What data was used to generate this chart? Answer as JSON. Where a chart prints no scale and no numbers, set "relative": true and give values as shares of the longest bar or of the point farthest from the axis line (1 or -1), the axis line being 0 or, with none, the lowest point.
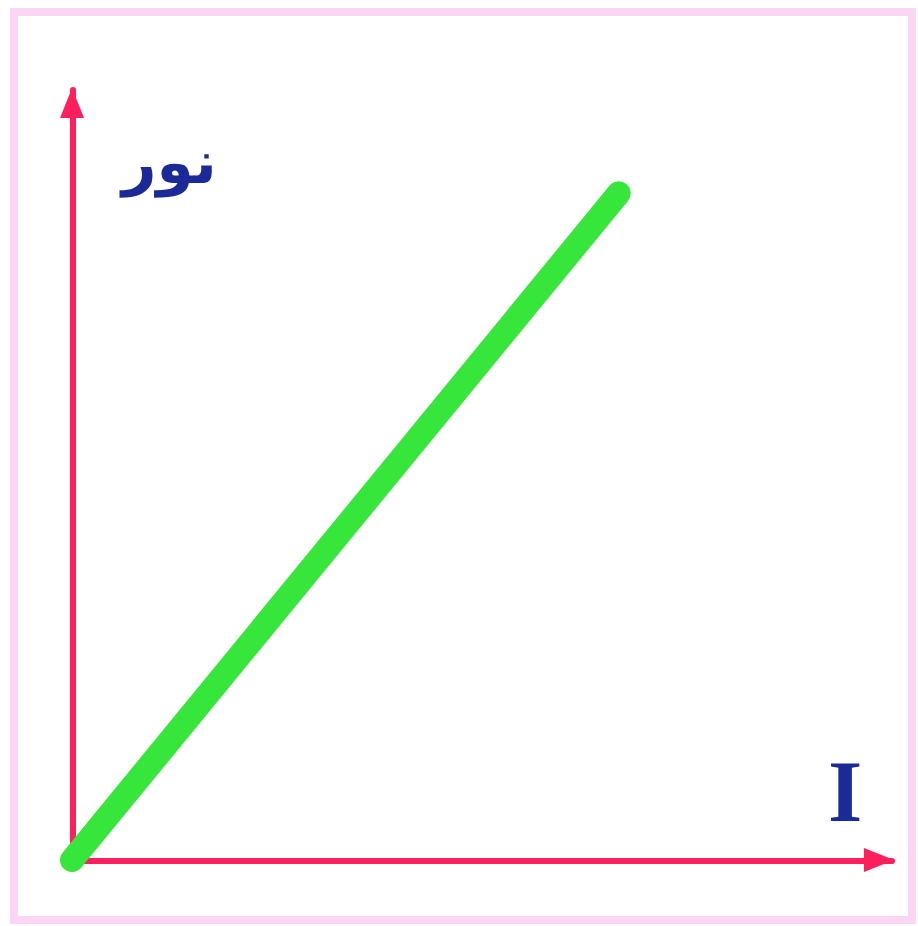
{
  "chart_data": {
    "type": "line",
    "xlabel": "I",
    "ylabel": "نور",
    "categories": [
      null,
      null,
      null,
      null
    ],
    "relative": true,
    "values": [
      0,
      0.5,
      1,
      null
    ],
    "color": "#36e63a"
  }
}
